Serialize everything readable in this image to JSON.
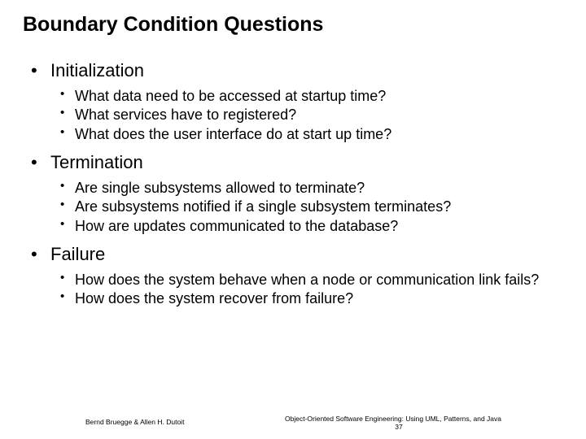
{
  "title": "Boundary Condition Questions",
  "sections": [
    {
      "heading": "Initialization",
      "items": [
        "What data need to be accessed at startup time?",
        "What services have to registered?",
        "What does the user interface do at start up time?"
      ]
    },
    {
      "heading": "Termination",
      "items": [
        "Are single subsystems allowed to terminate?",
        "Are subsystems notified if a single subsystem terminates?",
        "How are updates communicated to the database?"
      ]
    },
    {
      "heading": "Failure",
      "items": [
        "How does the system behave when a node or communication link fails?",
        "How does the system recover from failure?"
      ]
    }
  ],
  "footer": {
    "left": "Bernd Bruegge & Allen H. Dutoit",
    "right": "Object-Oriented Software Engineering: Using UML, Patterns, and Java",
    "page": "37"
  },
  "colors": {
    "background": "#ffffff",
    "text": "#000000"
  }
}
